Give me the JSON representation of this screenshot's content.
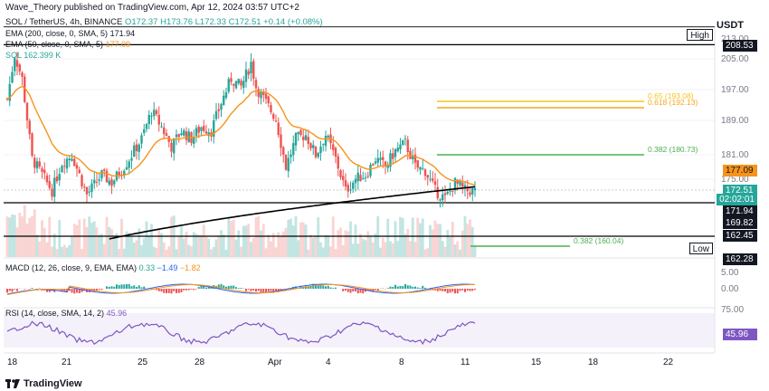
{
  "header": {
    "published": "Wave_Theory published on TradingView.com, Apr 12, 2024 03:57 UTC+2",
    "symbol": "SOL / TetherUS, 4h, BINANCE",
    "ohlc": "O172.37 H173.76 L172.33 C172.51 +0.14 (+0.08%)"
  },
  "currency": "USDT",
  "indicators": {
    "ema_short": {
      "label": "EMA (200, close, 0, SMA, 5)",
      "value": "171.94",
      "color": "#000000"
    },
    "ema_long": {
      "label": "EMA (50, close, 0, SMA, 5)",
      "value": "177.09",
      "color": "#f7931a"
    },
    "sol_vol": {
      "label": "SOL",
      "value": "162.399 K",
      "color": "#26a69a"
    },
    "macd": {
      "label": "MACD (12, 26, close, 9, EMA, EMA)",
      "v1": "0.33",
      "v2": "−1.49",
      "v3": "−1.82"
    },
    "rsi": {
      "label": "RSI (14, close, SMA, 14, 2)",
      "value": "45.96"
    }
  },
  "fib_levels": [
    {
      "label": "0.65 (193.08)",
      "price": 193.08,
      "color": "#f5c518"
    },
    {
      "label": "0.618 (192.13)",
      "price": 192.13,
      "color": "#f5a623"
    },
    {
      "label": "0.382 (180.73)",
      "price": 180.73,
      "color": "#4caf50"
    },
    {
      "label": "0.382 (160.04)",
      "price": 160.04,
      "color": "#4caf50"
    }
  ],
  "price_axis": [
    "213.00",
    "205.00",
    "197.00",
    "189.00",
    "181.00",
    "175.00"
  ],
  "price_tags": [
    {
      "name": "high-label",
      "text": "High",
      "kind": "label"
    },
    {
      "name": "high-price",
      "text": "208.53",
      "kind": "black"
    },
    {
      "name": "ema-long-price",
      "text": "177.09",
      "kind": "orange"
    },
    {
      "name": "current-price",
      "text": "172.51",
      "kind": "green"
    },
    {
      "name": "countdown",
      "text": "02:02:01",
      "kind": "green"
    },
    {
      "name": "ema-short-price",
      "text": "171.94",
      "kind": "black"
    },
    {
      "name": "support-price",
      "text": "169.82",
      "kind": "black"
    },
    {
      "name": "level-price",
      "text": "162.45",
      "kind": "black"
    },
    {
      "name": "low-label",
      "text": "Low",
      "kind": "label"
    },
    {
      "name": "low-price",
      "text": "162.28",
      "kind": "black"
    }
  ],
  "macd_axis": [
    "5.00",
    "0.00"
  ],
  "rsi_axis": [
    "75.00",
    "45.96"
  ],
  "time_axis": [
    "18",
    "21",
    "25",
    "28",
    "Apr",
    "4",
    "8",
    "11",
    "15",
    "18",
    "22"
  ],
  "footer": {
    "brand": "TradingView"
  },
  "colors": {
    "up": "#26a69a",
    "down": "#ef5350",
    "ema200": "#000000",
    "ema50": "#f7931a",
    "rsi": "#7e57c2"
  }
}
